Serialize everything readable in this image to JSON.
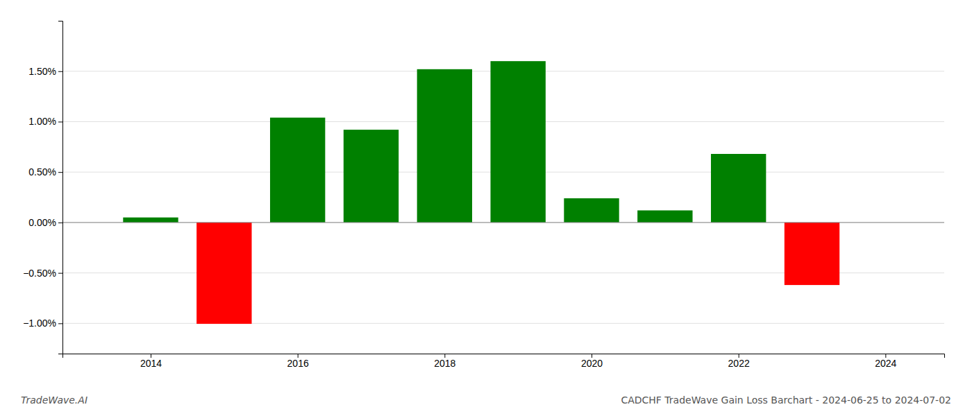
{
  "chart_data": {
    "type": "bar",
    "title": "CADCHF TradeWave Gain Loss Barchart - 2024-06-25 to 2024-07-02",
    "annotations": [
      "TradeWave.AI"
    ],
    "x": [
      2014,
      2015,
      2016,
      2017,
      2018,
      2019,
      2020,
      2021,
      2022,
      2023
    ],
    "values": [
      0.0005,
      -0.01005,
      0.0104,
      0.0092,
      0.0152,
      0.016,
      0.0024,
      0.0012,
      0.0068,
      -0.0062
    ],
    "colors": [
      "#008000",
      "#ff0000",
      "#008000",
      "#008000",
      "#008000",
      "#008000",
      "#008000",
      "#008000",
      "#008000",
      "#ff0000"
    ],
    "xlim": [
      2012.8,
      2024.8
    ],
    "xticks": [
      2014,
      2016,
      2018,
      2020,
      2022,
      2024
    ],
    "ylim": [
      -0.013,
      0.02
    ],
    "yticks": [
      {
        "value": -0.01,
        "label": "−1.00%"
      },
      {
        "value": -0.005,
        "label": "−0.50%"
      },
      {
        "value": 0.0,
        "label": "0.00%"
      },
      {
        "value": 0.005,
        "label": "0.50%"
      },
      {
        "value": 0.01,
        "label": "1.00%"
      },
      {
        "value": 0.015,
        "label": "1.50%"
      }
    ],
    "grid": true
  }
}
